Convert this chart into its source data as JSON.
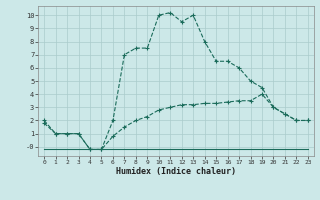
{
  "xlabel": "Humidex (Indice chaleur)",
  "bg_color": "#cce8e8",
  "grid_color": "#aacccc",
  "line_color": "#1a6b5a",
  "xlim": [
    -0.5,
    23.5
  ],
  "ylim": [
    -0.7,
    10.7
  ],
  "xticks": [
    0,
    1,
    2,
    3,
    4,
    5,
    6,
    7,
    8,
    9,
    10,
    11,
    12,
    13,
    14,
    15,
    16,
    17,
    18,
    19,
    20,
    21,
    22,
    23
  ],
  "yticks": [
    0,
    1,
    2,
    3,
    4,
    5,
    6,
    7,
    8,
    9,
    10
  ],
  "ytick_labels": [
    "-0",
    "1",
    "2",
    "3",
    "4",
    "5",
    "6",
    "7",
    "8",
    "9",
    "10"
  ],
  "line1_x": [
    0,
    1,
    2,
    3,
    4,
    5,
    6,
    7,
    8,
    9,
    10,
    11,
    12,
    13,
    14,
    15,
    16,
    17,
    18,
    19,
    20,
    21,
    22,
    23
  ],
  "line1_y": [
    2.0,
    1.0,
    1.0,
    1.0,
    -0.2,
    -0.2,
    2.0,
    7.0,
    7.5,
    7.5,
    10.0,
    10.2,
    9.5,
    10.0,
    8.0,
    6.5,
    6.5,
    6.0,
    5.0,
    4.5,
    3.0,
    2.5,
    2.0,
    2.0
  ],
  "line2_x": [
    0,
    1,
    2,
    3,
    4,
    5,
    6,
    7,
    8,
    9,
    10,
    11,
    12,
    13,
    14,
    15,
    16,
    17,
    18,
    19,
    20,
    21,
    22,
    23
  ],
  "line2_y": [
    1.8,
    1.0,
    1.0,
    1.0,
    -0.2,
    -0.2,
    0.8,
    1.5,
    2.0,
    2.3,
    2.8,
    3.0,
    3.2,
    3.2,
    3.3,
    3.3,
    3.4,
    3.5,
    3.5,
    4.0,
    3.0,
    2.5,
    2.0,
    2.0
  ],
  "line3_x": [
    0,
    1,
    2,
    3,
    4,
    5,
    6,
    7,
    8,
    9,
    10,
    11,
    12,
    13,
    14,
    15,
    16,
    17,
    18,
    19,
    20,
    21,
    22,
    23
  ],
  "line3_y": [
    -0.2,
    -0.2,
    -0.2,
    -0.2,
    -0.2,
    -0.2,
    -0.2,
    -0.2,
    -0.2,
    -0.2,
    -0.2,
    -0.2,
    -0.2,
    -0.2,
    -0.2,
    -0.2,
    -0.2,
    -0.2,
    -0.2,
    -0.2,
    -0.2,
    -0.2,
    -0.2,
    -0.2
  ]
}
